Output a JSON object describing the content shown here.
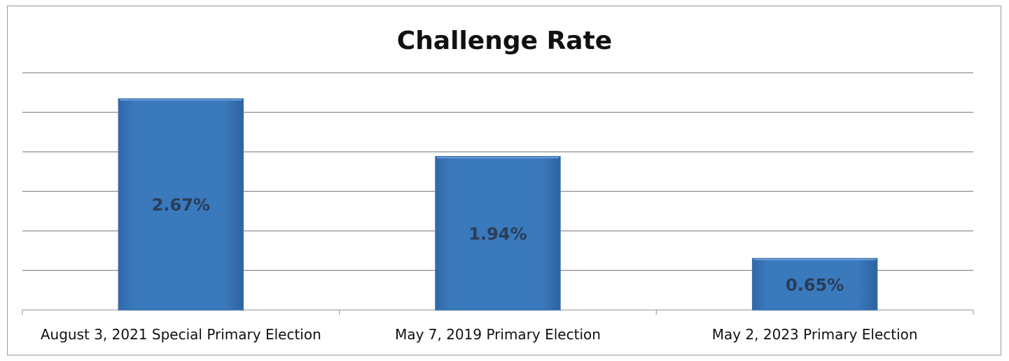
{
  "chart_data": {
    "type": "bar",
    "title": "Challenge Rate",
    "categories": [
      "August 3, 2021 Special Primary Election",
      "May 7, 2019 Primary Election",
      "May 2, 2023 Primary Election"
    ],
    "values": [
      2.67,
      1.94,
      0.65
    ],
    "data_labels": [
      "2.67%",
      "1.94%",
      "0.65%"
    ],
    "ylim": [
      0,
      3.0
    ],
    "gridlines": [
      0.5,
      1.0,
      1.5,
      2.0,
      2.5,
      3.0
    ],
    "grid": true,
    "legend": "none",
    "bar_color": "#3b79bd"
  }
}
